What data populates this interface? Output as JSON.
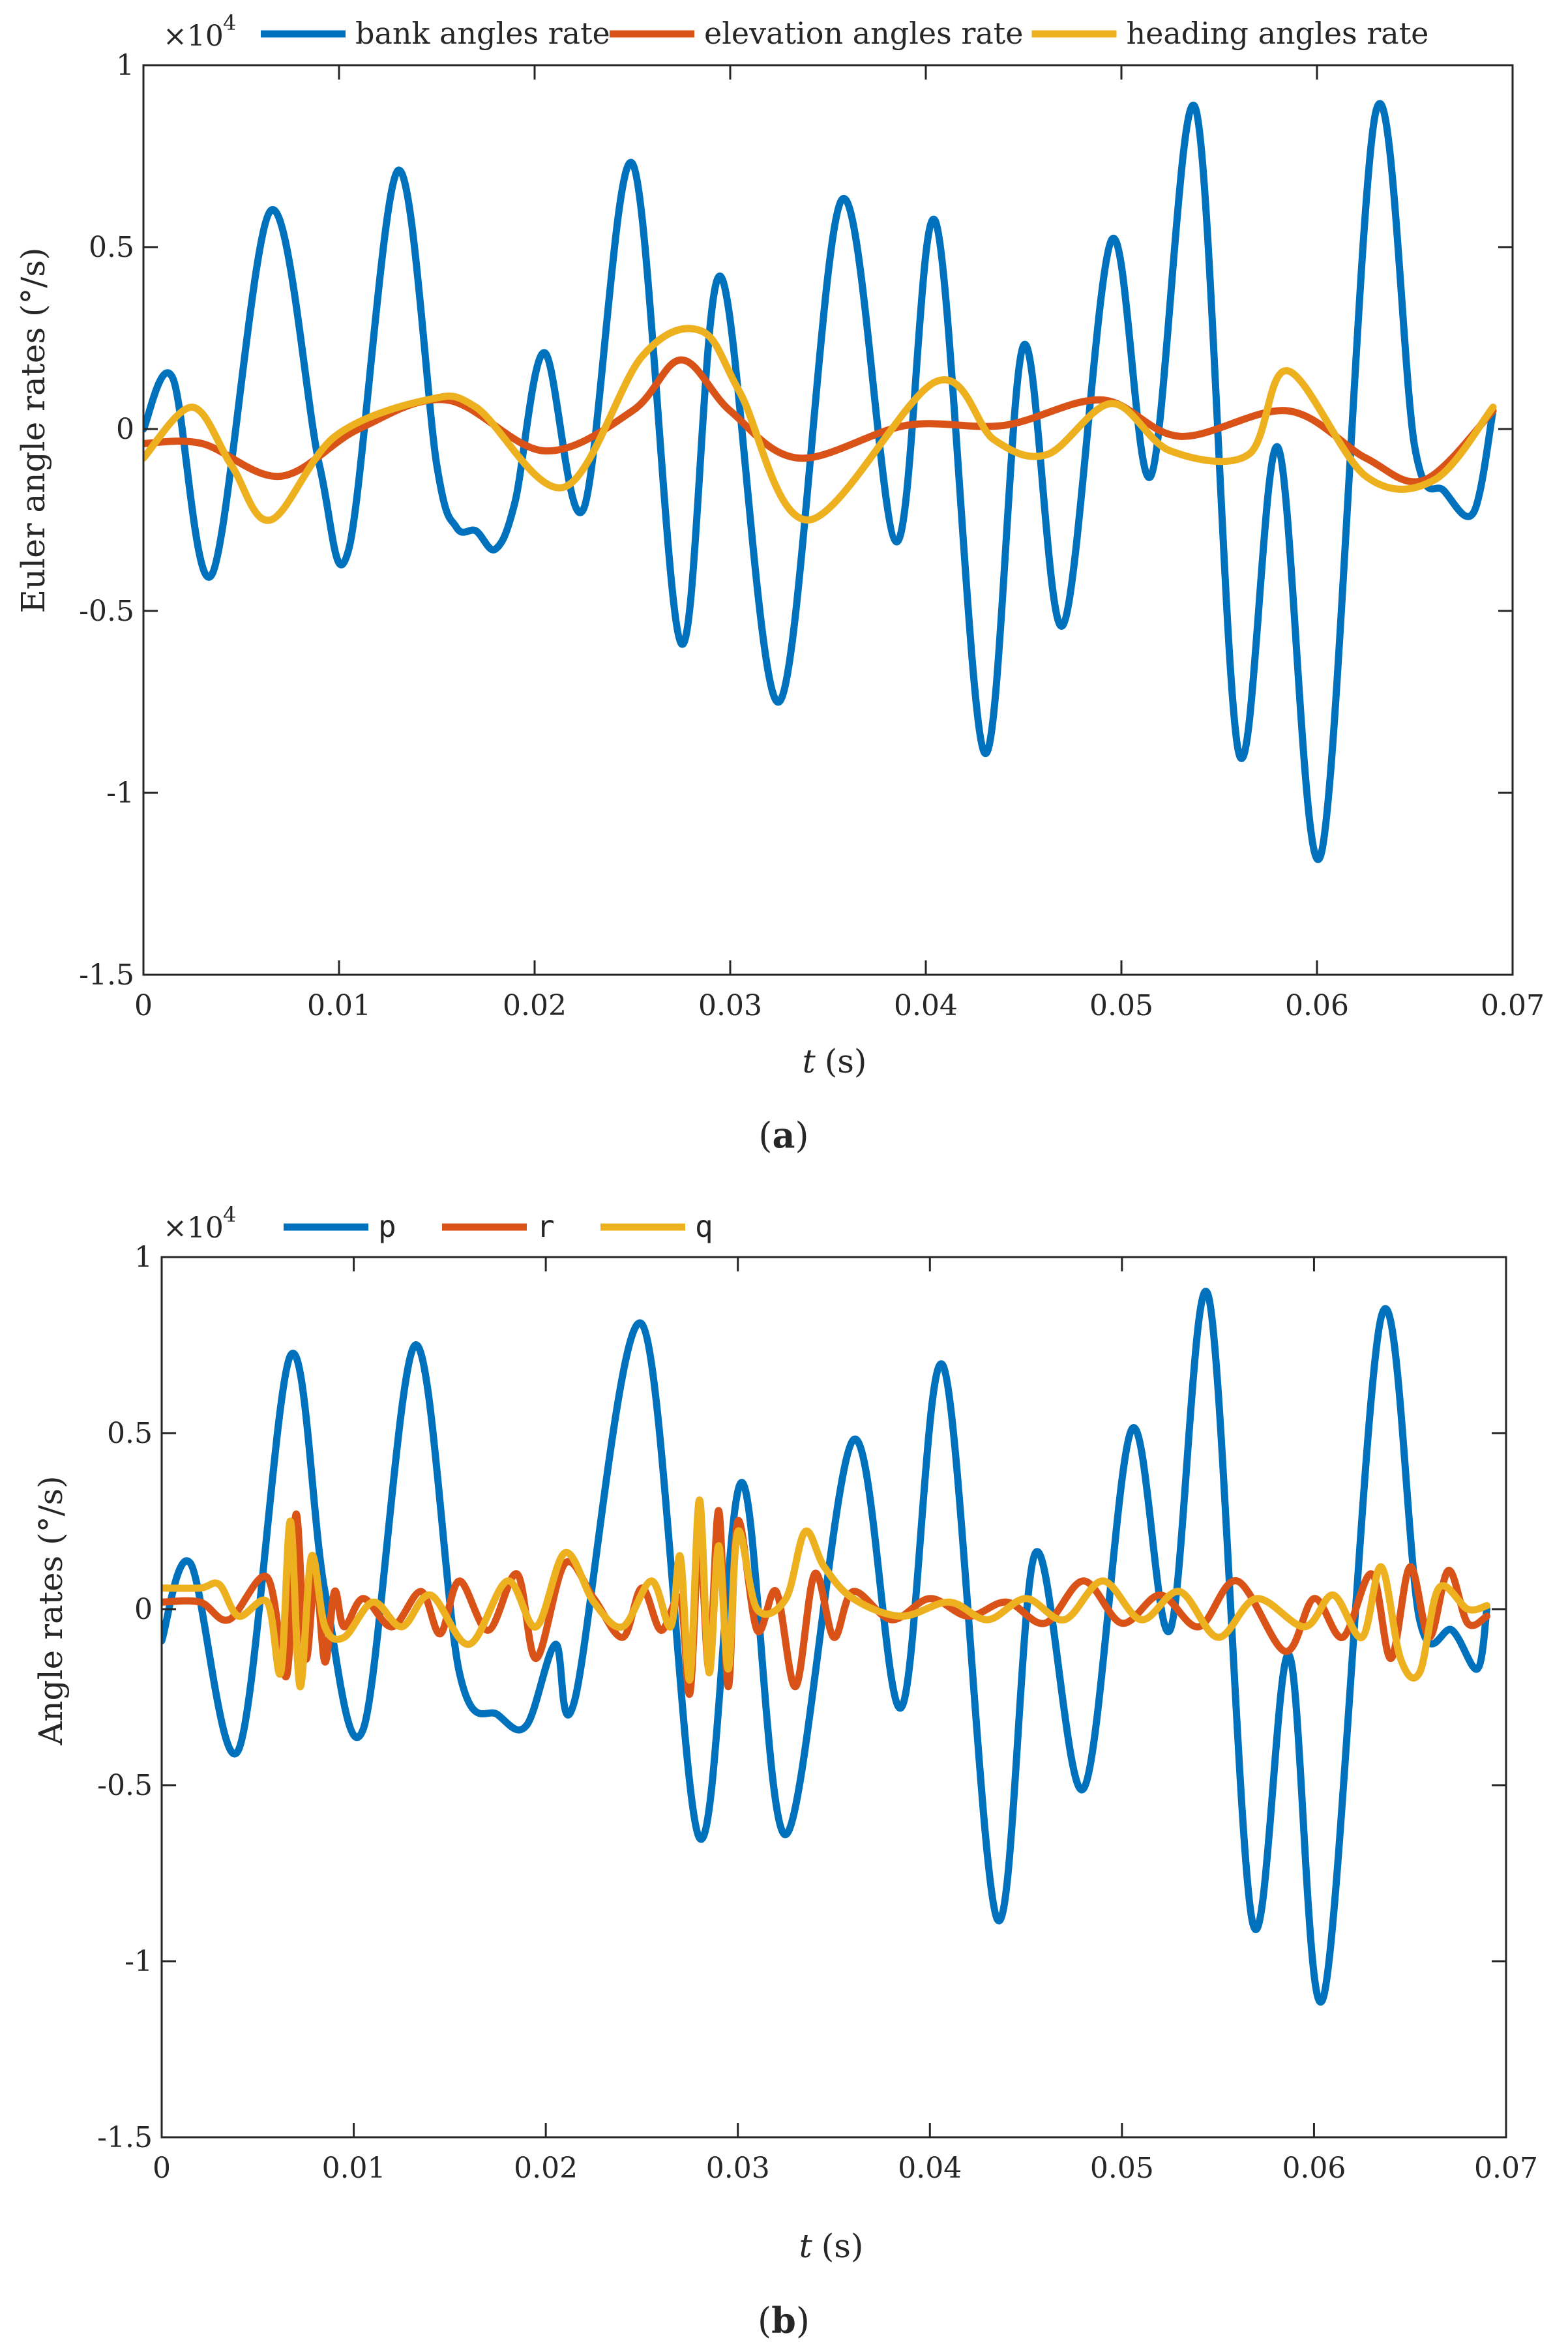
{
  "chart_data": [
    {
      "type": "line",
      "caption": "a",
      "xlabel_italic": "t",
      "xlabel_unit": "(s)",
      "ylabel": "Euler angle rates (°/s)",
      "multiplier_base": "×10",
      "multiplier_exp": "4",
      "xlim": [
        0,
        0.07
      ],
      "ylim": [
        -1.5,
        1
      ],
      "xticks": [
        0,
        0.01,
        0.02,
        0.03,
        0.04,
        0.05,
        0.06,
        0.07
      ],
      "xtick_labels": [
        "0",
        "0.01",
        "0.02",
        "0.03",
        "0.04",
        "0.05",
        "0.06",
        "0.07"
      ],
      "yticks": [
        1,
        0.5,
        0,
        -0.5,
        -1,
        -1.5
      ],
      "ytick_labels": [
        "1",
        "0.5",
        "0",
        "-0.5",
        "-1",
        "-1.5"
      ],
      "legend_position": "top-outside",
      "series": [
        {
          "name": "bank angles rate",
          "color": "#0072BD",
          "points": [
            [
              0,
              0
            ],
            [
              0.0015,
              0.14
            ],
            [
              0.0035,
              -0.4
            ],
            [
              0.0065,
              0.6
            ],
            [
              0.009,
              -0.1
            ],
            [
              0.0105,
              -0.33
            ],
            [
              0.013,
              0.71
            ],
            [
              0.015,
              -0.1
            ],
            [
              0.016,
              -0.27
            ],
            [
              0.017,
              -0.28
            ],
            [
              0.018,
              -0.33
            ],
            [
              0.019,
              -0.2
            ],
            [
              0.0205,
              0.21
            ],
            [
              0.0225,
              -0.22
            ],
            [
              0.025,
              0.73
            ],
            [
              0.0275,
              -0.59
            ],
            [
              0.0295,
              0.42
            ],
            [
              0.0325,
              -0.75
            ],
            [
              0.0357,
              0.63
            ],
            [
              0.0385,
              -0.31
            ],
            [
              0.0405,
              0.57
            ],
            [
              0.043,
              -0.89
            ],
            [
              0.045,
              0.23
            ],
            [
              0.047,
              -0.54
            ],
            [
              0.0495,
              0.52
            ],
            [
              0.0515,
              -0.13
            ],
            [
              0.0538,
              0.88
            ],
            [
              0.056,
              -0.89
            ],
            [
              0.058,
              -0.05
            ],
            [
              0.0602,
              -1.17
            ],
            [
              0.063,
              0.87
            ],
            [
              0.065,
              -0.05
            ],
            [
              0.0665,
              -0.17
            ],
            [
              0.068,
              -0.23
            ],
            [
              0.069,
              0.05
            ]
          ]
        },
        {
          "name": "elevation angles rate",
          "color": "#D95319",
          "points": [
            [
              0,
              -0.04
            ],
            [
              0.003,
              -0.04
            ],
            [
              0.007,
              -0.13
            ],
            [
              0.011,
              0
            ],
            [
              0.0155,
              0.08
            ],
            [
              0.0205,
              -0.06
            ],
            [
              0.025,
              0.05
            ],
            [
              0.0275,
              0.19
            ],
            [
              0.03,
              0.05
            ],
            [
              0.0335,
              -0.08
            ],
            [
              0.039,
              0.01
            ],
            [
              0.044,
              0.01
            ],
            [
              0.049,
              0.08
            ],
            [
              0.053,
              -0.02
            ],
            [
              0.0585,
              0.05
            ],
            [
              0.0625,
              -0.08
            ],
            [
              0.0655,
              -0.14
            ],
            [
              0.069,
              0.05
            ]
          ]
        },
        {
          "name": "heading angles rate",
          "color": "#EDB120",
          "points": [
            [
              0,
              -0.08
            ],
            [
              0.0025,
              0.06
            ],
            [
              0.0045,
              -0.1
            ],
            [
              0.0065,
              -0.25
            ],
            [
              0.0098,
              -0.02
            ],
            [
              0.0145,
              0.08
            ],
            [
              0.017,
              0.06
            ],
            [
              0.0215,
              -0.16
            ],
            [
              0.0255,
              0.2
            ],
            [
              0.0285,
              0.27
            ],
            [
              0.0305,
              0.1
            ],
            [
              0.034,
              -0.25
            ],
            [
              0.0405,
              0.13
            ],
            [
              0.0435,
              -0.03
            ],
            [
              0.0462,
              -0.07
            ],
            [
              0.0495,
              0.07
            ],
            [
              0.0525,
              -0.06
            ],
            [
              0.0565,
              -0.07
            ],
            [
              0.0585,
              0.16
            ],
            [
              0.0625,
              -0.13
            ],
            [
              0.066,
              -0.14
            ],
            [
              0.069,
              0.06
            ]
          ]
        }
      ]
    },
    {
      "type": "line",
      "caption": "b",
      "xlabel_italic": "t",
      "xlabel_unit": "(s)",
      "ylabel": "Angle rates (°/s)",
      "multiplier_base": "×10",
      "multiplier_exp": "4",
      "xlim": [
        0,
        0.07
      ],
      "ylim": [
        -1.5,
        1
      ],
      "xticks": [
        0,
        0.01,
        0.02,
        0.03,
        0.04,
        0.05,
        0.06,
        0.07
      ],
      "xtick_labels": [
        "0",
        "0.01",
        "0.02",
        "0.03",
        "0.04",
        "0.05",
        "0.06",
        "0.07"
      ],
      "yticks": [
        1,
        0.5,
        0,
        -0.5,
        -1,
        -1.5
      ],
      "ytick_labels": [
        "1",
        "0.5",
        "0",
        "-0.5",
        "-1",
        "-1.5"
      ],
      "legend_position": "top-outside",
      "series": [
        {
          "name": "p",
          "color": "#0072BD",
          "points": [
            [
              0,
              -0.09
            ],
            [
              0.0015,
              0.13
            ],
            [
              0.004,
              -0.4
            ],
            [
              0.0067,
              0.72
            ],
            [
              0.0085,
              0.05
            ],
            [
              0.0105,
              -0.34
            ],
            [
              0.0132,
              0.75
            ],
            [
              0.0155,
              -0.18
            ],
            [
              0.0175,
              -0.3
            ],
            [
              0.019,
              -0.33
            ],
            [
              0.0205,
              -0.1
            ],
            [
              0.0215,
              -0.26
            ],
            [
              0.025,
              0.81
            ],
            [
              0.028,
              -0.65
            ],
            [
              0.0302,
              0.36
            ],
            [
              0.0325,
              -0.64
            ],
            [
              0.036,
              0.48
            ],
            [
              0.0385,
              -0.28
            ],
            [
              0.0407,
              0.69
            ],
            [
              0.0435,
              -0.88
            ],
            [
              0.0455,
              0.16
            ],
            [
              0.048,
              -0.51
            ],
            [
              0.0505,
              0.51
            ],
            [
              0.0525,
              -0.06
            ],
            [
              0.0545,
              0.89
            ],
            [
              0.0568,
              -0.89
            ],
            [
              0.0587,
              -0.13
            ],
            [
              0.0605,
              -1.1
            ],
            [
              0.0635,
              0.83
            ],
            [
              0.0655,
              -0.03
            ],
            [
              0.0672,
              -0.06
            ],
            [
              0.0685,
              -0.17
            ],
            [
              0.069,
              0
            ]
          ]
        },
        {
          "name": "r",
          "color": "#D95319",
          "points": [
            [
              0,
              0.02
            ],
            [
              0.002,
              0.02
            ],
            [
              0.0035,
              -0.03
            ],
            [
              0.0055,
              0.09
            ],
            [
              0.0065,
              -0.19
            ],
            [
              0.007,
              0.27
            ],
            [
              0.0075,
              -0.14
            ],
            [
              0.008,
              0.1
            ],
            [
              0.0085,
              -0.15
            ],
            [
              0.009,
              0.05
            ],
            [
              0.0095,
              -0.05
            ],
            [
              0.0105,
              0.03
            ],
            [
              0.012,
              -0.05
            ],
            [
              0.0135,
              0.05
            ],
            [
              0.0145,
              -0.07
            ],
            [
              0.0155,
              0.08
            ],
            [
              0.017,
              -0.06
            ],
            [
              0.0185,
              0.1
            ],
            [
              0.0195,
              -0.14
            ],
            [
              0.021,
              0.13
            ],
            [
              0.0225,
              0.03
            ],
            [
              0.024,
              -0.08
            ],
            [
              0.025,
              0.06
            ],
            [
              0.026,
              -0.06
            ],
            [
              0.027,
              0.03
            ],
            [
              0.0275,
              -0.24
            ],
            [
              0.028,
              0.2
            ],
            [
              0.0285,
              -0.17
            ],
            [
              0.029,
              0.28
            ],
            [
              0.0295,
              -0.22
            ],
            [
              0.03,
              0.25
            ],
            [
              0.031,
              -0.06
            ],
            [
              0.032,
              0.05
            ],
            [
              0.033,
              -0.22
            ],
            [
              0.034,
              0.1
            ],
            [
              0.035,
              -0.08
            ],
            [
              0.036,
              0.05
            ],
            [
              0.038,
              -0.03
            ],
            [
              0.04,
              0.03
            ],
            [
              0.042,
              -0.02
            ],
            [
              0.044,
              0.02
            ],
            [
              0.046,
              -0.04
            ],
            [
              0.048,
              0.08
            ],
            [
              0.05,
              -0.04
            ],
            [
              0.052,
              0.04
            ],
            [
              0.054,
              -0.05
            ],
            [
              0.056,
              0.08
            ],
            [
              0.0585,
              -0.12
            ],
            [
              0.06,
              0.03
            ],
            [
              0.0615,
              -0.08
            ],
            [
              0.063,
              0.1
            ],
            [
              0.064,
              -0.14
            ],
            [
              0.065,
              0.12
            ],
            [
              0.066,
              -0.08
            ],
            [
              0.067,
              0.11
            ],
            [
              0.068,
              -0.04
            ],
            [
              0.069,
              -0.02
            ]
          ]
        },
        {
          "name": "q",
          "color": "#EDB120",
          "points": [
            [
              0,
              0.06
            ],
            [
              0.002,
              0.06
            ],
            [
              0.003,
              0.07
            ],
            [
              0.004,
              -0.02
            ],
            [
              0.0055,
              0.02
            ],
            [
              0.0062,
              -0.18
            ],
            [
              0.0067,
              0.25
            ],
            [
              0.0072,
              -0.22
            ],
            [
              0.0078,
              0.15
            ],
            [
              0.0085,
              -0.05
            ],
            [
              0.0095,
              -0.08
            ],
            [
              0.011,
              0.02
            ],
            [
              0.0125,
              -0.05
            ],
            [
              0.014,
              0.04
            ],
            [
              0.016,
              -0.1
            ],
            [
              0.018,
              0.08
            ],
            [
              0.0195,
              -0.05
            ],
            [
              0.021,
              0.16
            ],
            [
              0.0225,
              0.02
            ],
            [
              0.024,
              -0.05
            ],
            [
              0.0255,
              0.08
            ],
            [
              0.0265,
              -0.05
            ],
            [
              0.027,
              0.15
            ],
            [
              0.0275,
              -0.2
            ],
            [
              0.028,
              0.31
            ],
            [
              0.0285,
              -0.18
            ],
            [
              0.029,
              0.18
            ],
            [
              0.0295,
              -0.17
            ],
            [
              0.03,
              0.22
            ],
            [
              0.031,
              0
            ],
            [
              0.0325,
              0.03
            ],
            [
              0.0335,
              0.22
            ],
            [
              0.0345,
              0.12
            ],
            [
              0.036,
              0.03
            ],
            [
              0.0385,
              -0.02
            ],
            [
              0.041,
              0.02
            ],
            [
              0.043,
              -0.03
            ],
            [
              0.045,
              0.03
            ],
            [
              0.047,
              -0.03
            ],
            [
              0.049,
              0.08
            ],
            [
              0.051,
              -0.03
            ],
            [
              0.053,
              0.05
            ],
            [
              0.055,
              -0.08
            ],
            [
              0.057,
              0.03
            ],
            [
              0.0595,
              -0.05
            ],
            [
              0.061,
              0.04
            ],
            [
              0.0625,
              -0.08
            ],
            [
              0.0635,
              0.12
            ],
            [
              0.0645,
              -0.14
            ],
            [
              0.0655,
              -0.18
            ],
            [
              0.0665,
              0.06
            ],
            [
              0.068,
              0
            ],
            [
              0.069,
              0.01
            ]
          ]
        }
      ]
    }
  ]
}
